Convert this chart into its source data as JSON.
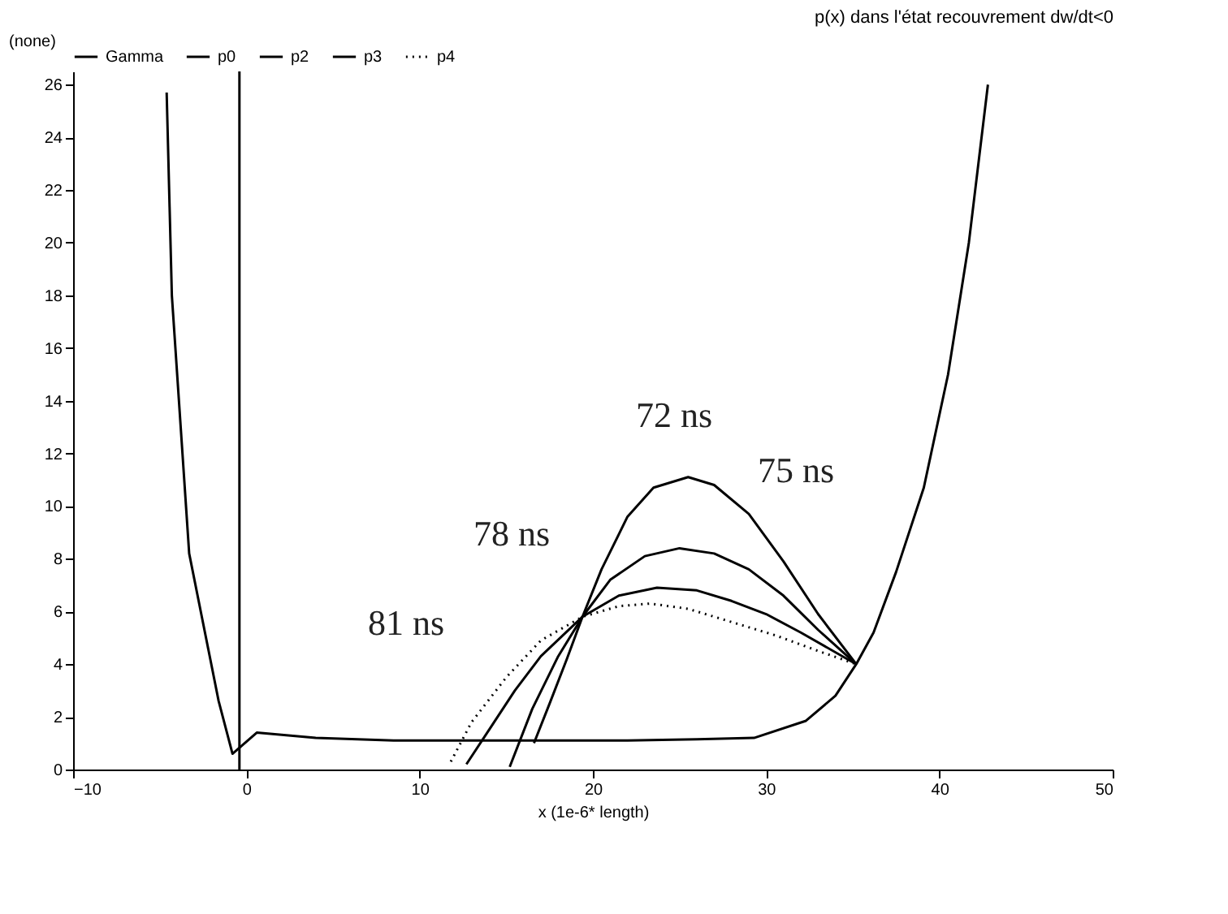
{
  "chart_data": {
    "type": "line",
    "title": "p(x) dans l'état recouvrement dw/dt<0",
    "ylabel": "(none)",
    "xlabel": "x (1e-6* length)",
    "xlim": [
      -10,
      50
    ],
    "xticks": [
      -10,
      0,
      10,
      20,
      30,
      40,
      50
    ],
    "ylim": [
      0,
      26.5
    ],
    "yticks": [
      0,
      2,
      4,
      6,
      8,
      10,
      12,
      14,
      16,
      18,
      20,
      22,
      24,
      26
    ],
    "grid": false,
    "legend": "top left",
    "marker": "none",
    "series": [
      {
        "name": "Gamma",
        "color": "#000000",
        "line_style": "solid",
        "x": [
          -4.6,
          -4.3,
          -3.3,
          -1.6,
          -0.8,
          0.6,
          4,
          8.5,
          12,
          17.2,
          22,
          26,
          29.3,
          32.3,
          34,
          35.2,
          36.2,
          37.5,
          39.1,
          40.5,
          41.7,
          42.8
        ],
        "values": [
          25.7,
          18,
          8.2,
          2.6,
          0.6,
          1.4,
          1.2,
          1.1,
          1.1,
          1.1,
          1.1,
          1.15,
          1.2,
          1.85,
          2.8,
          4.0,
          5.2,
          7.5,
          10.7,
          15,
          20,
          26
        ]
      },
      {
        "name": "p0",
        "color": "#000000",
        "line_style": "solid",
        "x": [
          16.6,
          17.5,
          18.5,
          19.4,
          20.5,
          22,
          23.5,
          25.5,
          27,
          29,
          31,
          33,
          35.2
        ],
        "values": [
          1.0,
          2.5,
          4.2,
          5.8,
          7.6,
          9.6,
          10.7,
          11.1,
          10.8,
          9.7,
          7.9,
          5.9,
          4.0
        ]
      },
      {
        "name": "p2",
        "color": "#000000",
        "line_style": "solid",
        "x": [
          15.2,
          16.5,
          18,
          19.4,
          21,
          23,
          25,
          27,
          29,
          31,
          33,
          35.2
        ],
        "values": [
          0.1,
          2.3,
          4.3,
          5.8,
          7.2,
          8.1,
          8.4,
          8.2,
          7.6,
          6.6,
          5.3,
          4.0
        ]
      },
      {
        "name": "p3",
        "color": "#000000",
        "line_style": "solid",
        "x": [
          12.7,
          14,
          15.5,
          17,
          19.4,
          21.5,
          23.7,
          26,
          28,
          30,
          32,
          35.2
        ],
        "values": [
          0.2,
          1.5,
          3.0,
          4.3,
          5.8,
          6.6,
          6.9,
          6.8,
          6.4,
          5.9,
          5.2,
          4.0
        ]
      },
      {
        "name": "p4",
        "color": "#000000",
        "line_style": "dotted",
        "x": [
          11.8,
          13,
          15,
          17,
          19.4,
          21.5,
          23.3,
          25.5,
          28,
          30.5,
          33,
          35.2
        ],
        "values": [
          0.3,
          1.8,
          3.5,
          4.9,
          5.8,
          6.2,
          6.3,
          6.1,
          5.6,
          5.1,
          4.5,
          4.0
        ]
      }
    ],
    "ref_lines": [
      {
        "axis": "x",
        "value": -0.4,
        "color": "#000000",
        "line_style": "solid"
      }
    ],
    "annotations": [
      "72 ns",
      "75 ns",
      "78 ns",
      "81 ns"
    ]
  }
}
